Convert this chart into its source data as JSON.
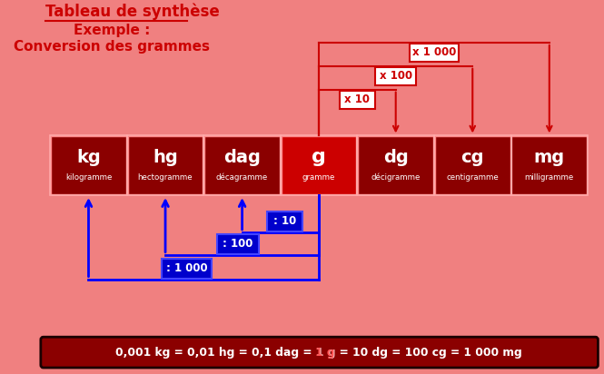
{
  "bg_color": "#F08080",
  "title_line1": "Tableau de synthèse",
  "title_line2": "Exemple :",
  "title_line3": "Conversion des grammes",
  "units": [
    "kg",
    "hg",
    "dag",
    "g",
    "dg",
    "cg",
    "mg"
  ],
  "subunits": [
    "kilogramme",
    "hectogramme",
    "décagramme",
    "gramme",
    "décigramme",
    "centigramme",
    "milligramme"
  ],
  "unit_bar_color": "#8B0000",
  "unit_bar_highlight": "#CC0000",
  "multiply_labels": [
    "x 10",
    "x 100",
    "x 1 000"
  ],
  "divide_labels": [
    ": 10",
    ": 100",
    ": 1 000"
  ],
  "blue_box_color": "#0000CC",
  "arrow_red": "#CC0000",
  "arrow_blue": "#0000FF",
  "bottom_bar_color": "#8B0000",
  "bottom_text_color": "#FFFFFF"
}
